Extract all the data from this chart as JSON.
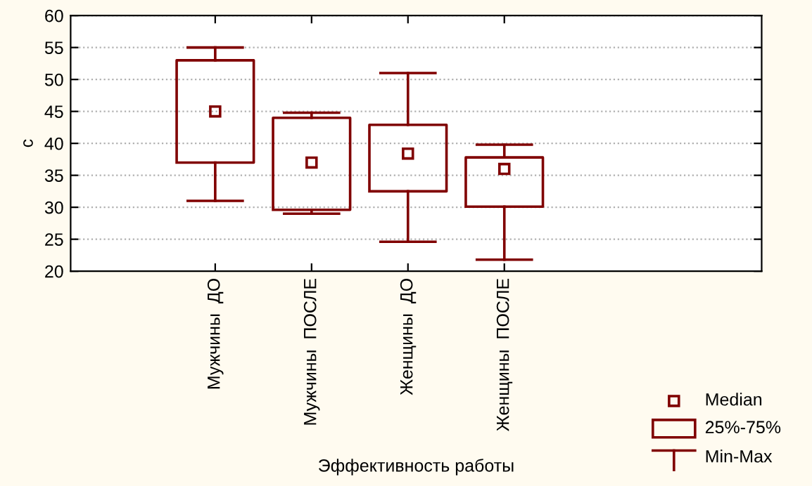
{
  "chart_data": {
    "type": "box",
    "xlabel": "Эффективность работы",
    "ylabel": "c",
    "categories": [
      "Мужчины  ДО",
      "Мужчины  ПОСЛЕ",
      "Женщины  ДО",
      "Женщины  ПОСЛЕ"
    ],
    "boxes": [
      {
        "low": 31,
        "q1": 37,
        "median": 45,
        "q3": 53,
        "high": 55
      },
      {
        "low": 29,
        "q1": 29.6,
        "median": 37,
        "q3": 44,
        "high": 44.8
      },
      {
        "low": 24.6,
        "q1": 32.5,
        "median": 38.4,
        "q3": 42.9,
        "high": 51
      },
      {
        "low": 21.8,
        "q1": 30.1,
        "median": 36,
        "q3": 37.8,
        "high": 39.8
      }
    ],
    "color": "#800000",
    "ylim": [
      20,
      60
    ],
    "yticks": [
      20,
      25,
      30,
      35,
      40,
      45,
      50,
      55,
      60
    ],
    "grid": "y",
    "marker": "square",
    "annotations": [
      "Median",
      "25%-75%",
      "Min-Max"
    ]
  }
}
